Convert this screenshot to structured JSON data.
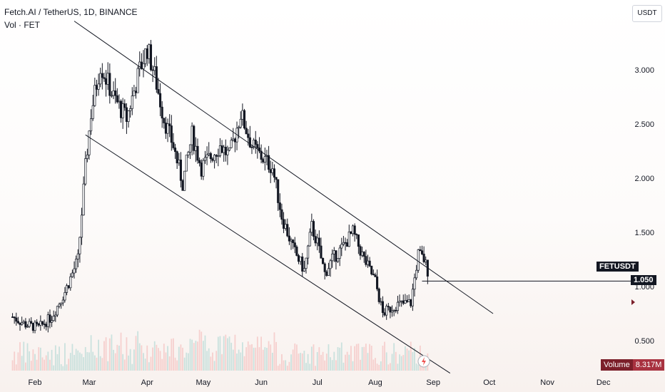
{
  "header": {
    "title": "Fetch.AI / TetherUS, 1D, BINANCE",
    "volume_label": "Vol · FET"
  },
  "currency_button": "USDT",
  "last_price": {
    "symbol": "FETUSDT",
    "value": "1.050"
  },
  "volume_badge": {
    "label": "Volume",
    "value": "8.317M"
  },
  "colors": {
    "up": "#26a69a",
    "down": "#ef5350",
    "candle": "#131722",
    "text": "#131722"
  },
  "chart_data": {
    "type": "candlestick",
    "title": "Fetch.AI / TetherUS, 1D, BINANCE",
    "x_ticks": [
      "Feb",
      "Mar",
      "Apr",
      "May",
      "Jun",
      "Jul",
      "Aug",
      "Sep",
      "Oct",
      "Nov",
      "Dec"
    ],
    "y_ticks": [
      "0.500",
      "1.000",
      "1.500",
      "2.000",
      "2.500",
      "3.000"
    ],
    "ylim": [
      0.2,
      3.5
    ],
    "current_price": 1.05,
    "price_path": [
      [
        "2024-01-20",
        0.72
      ],
      [
        "2024-01-27",
        0.65
      ],
      [
        "2024-02-03",
        0.62
      ],
      [
        "2024-02-10",
        0.72
      ],
      [
        "2024-02-17",
        0.95
      ],
      [
        "2024-02-24",
        1.25
      ],
      [
        "2024-02-28",
        2.1
      ],
      [
        "2024-03-02",
        2.6
      ],
      [
        "2024-03-07",
        3.05
      ],
      [
        "2024-03-14",
        2.75
      ],
      [
        "2024-03-21",
        2.55
      ],
      [
        "2024-03-28",
        3.0
      ],
      [
        "2024-04-01",
        3.2
      ],
      [
        "2024-04-05",
        2.95
      ],
      [
        "2024-04-10",
        2.55
      ],
      [
        "2024-04-15",
        2.3
      ],
      [
        "2024-04-20",
        1.95
      ],
      [
        "2024-04-25",
        2.4
      ],
      [
        "2024-04-30",
        2.1
      ],
      [
        "2024-05-05",
        2.2
      ],
      [
        "2024-05-10",
        2.3
      ],
      [
        "2024-05-15",
        2.2
      ],
      [
        "2024-05-21",
        2.6
      ],
      [
        "2024-05-27",
        2.3
      ],
      [
        "2024-06-01",
        2.2
      ],
      [
        "2024-06-07",
        2.1
      ],
      [
        "2024-06-12",
        1.65
      ],
      [
        "2024-06-18",
        1.35
      ],
      [
        "2024-06-24",
        1.15
      ],
      [
        "2024-06-28",
        1.55
      ],
      [
        "2024-07-01",
        1.4
      ],
      [
        "2024-07-05",
        1.12
      ],
      [
        "2024-07-09",
        1.25
      ],
      [
        "2024-07-14",
        1.35
      ],
      [
        "2024-07-20",
        1.5
      ],
      [
        "2024-07-26",
        1.25
      ],
      [
        "2024-08-01",
        1.05
      ],
      [
        "2024-08-05",
        0.75
      ],
      [
        "2024-08-12",
        0.83
      ],
      [
        "2024-08-20",
        0.85
      ],
      [
        "2024-08-24",
        1.3
      ],
      [
        "2024-08-27",
        1.25
      ],
      [
        "2024-08-29",
        1.15
      ]
    ],
    "channel_lines": [
      {
        "from": [
          "2024-02-22",
          3.45
        ],
        "to": [
          "2024-10-03",
          0.75
        ]
      },
      {
        "from": [
          "2024-02-28",
          2.4
        ],
        "to": [
          "2024-09-10",
          0.2
        ]
      }
    ],
    "price_line": {
      "from": "2024-08-26",
      "value": 1.05
    }
  }
}
